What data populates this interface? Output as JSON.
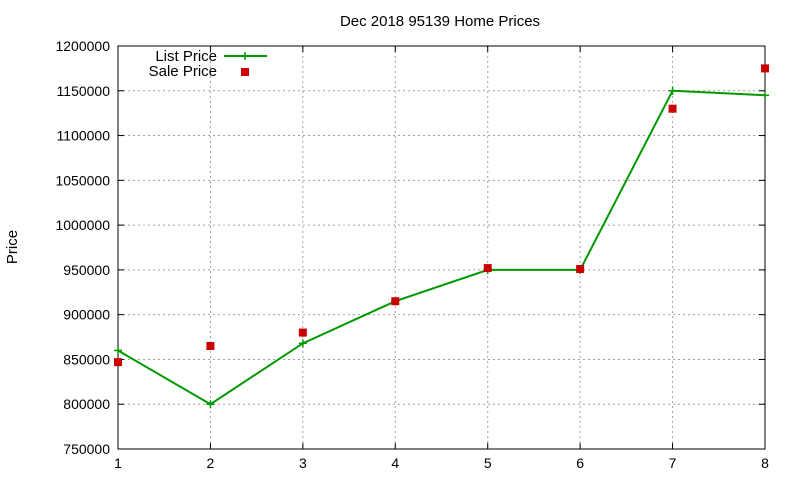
{
  "chart_data": {
    "type": "line",
    "title": "Dec 2018 95139 Home Prices",
    "xlabel": "",
    "ylabel": "Price",
    "x": [
      1,
      2,
      3,
      4,
      5,
      6,
      7,
      8
    ],
    "xlim": [
      1,
      8
    ],
    "ylim": [
      750000,
      1200000
    ],
    "y_ticks": [
      "750000",
      "800000",
      "850000",
      "900000",
      "950000",
      "1000000",
      "1050000",
      "1100000",
      "1150000",
      "1200000"
    ],
    "x_ticks": [
      "1",
      "2",
      "3",
      "4",
      "5",
      "6",
      "7",
      "8"
    ],
    "grid": true,
    "legend_position": "top-left",
    "series": [
      {
        "name": "List Price",
        "style": "line-with-plus-markers",
        "color": "#009900",
        "values": [
          860000,
          800000,
          868000,
          915000,
          950000,
          950000,
          1150000,
          1145000
        ]
      },
      {
        "name": "Sale Price",
        "style": "square-markers",
        "color": "#cc0000",
        "values": [
          847000,
          865000,
          880000,
          915000,
          952000,
          951000,
          1130000,
          1175000
        ]
      }
    ]
  }
}
